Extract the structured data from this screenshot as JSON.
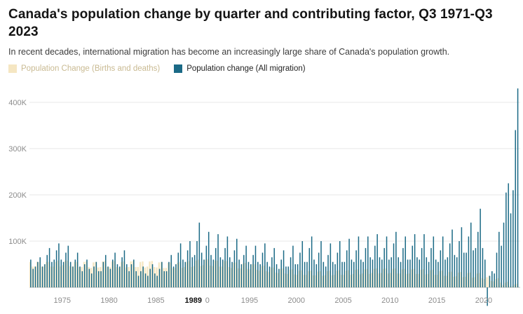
{
  "header": {
    "title": "Canada's population change by quarter and contributing factor, Q3 1971-Q3 2023",
    "subtitle": "In recent decades, international migration has become an increasingly large share of Canada's population growth."
  },
  "legend": [
    {
      "label": "Population Change (Births and deaths)",
      "color": "#f5e6c2"
    },
    {
      "label": "Population change (All migration)",
      "color": "#1b6a86"
    }
  ],
  "chart_data": {
    "type": "bar",
    "title": "Canada's population change by quarter and contributing factor, Q3 1971-Q3 2023",
    "units": "persons (values in thousands)",
    "x_range": {
      "start": "1971 Q3",
      "end": "2023 Q3",
      "frequency": "quarterly"
    },
    "ylim_thousands": [
      -60,
      440
    ],
    "grid": true,
    "legend_position": "top",
    "y_ticks": [
      {
        "label": "100K",
        "value": 100
      },
      {
        "label": "200K",
        "value": 200
      },
      {
        "label": "300K",
        "value": 300
      },
      {
        "label": "400K",
        "value": 400
      }
    ],
    "x_ticks": [
      {
        "label": "1975",
        "quarter_index": 14,
        "bold": false
      },
      {
        "label": "1980",
        "quarter_index": 34,
        "bold": false
      },
      {
        "label": "1985",
        "quarter_index": 54,
        "bold": false
      },
      {
        "label": "1989",
        "quarter_index": 70,
        "bold": true
      },
      {
        "label": "0",
        "quarter_index": 76,
        "bold": false
      },
      {
        "label": "1995",
        "quarter_index": 94,
        "bold": false
      },
      {
        "label": "2000",
        "quarter_index": 114,
        "bold": false
      },
      {
        "label": "2005",
        "quarter_index": 134,
        "bold": false
      },
      {
        "label": "2010",
        "quarter_index": 154,
        "bold": false
      },
      {
        "label": "2015",
        "quarter_index": 174,
        "bold": false
      },
      {
        "label": "2020",
        "quarter_index": 194,
        "bold": false
      }
    ],
    "series": [
      {
        "name": "Population Change (Births and deaths)",
        "color": "#f5e6c2",
        "values_thousands": [
          55,
          45,
          45,
          55,
          55,
          45,
          45,
          55,
          55,
          45,
          45,
          55,
          58,
          45,
          48,
          58,
          58,
          46,
          45,
          55,
          55,
          44,
          44,
          55,
          56,
          44,
          42,
          54,
          55,
          43,
          44,
          56,
          57,
          44,
          44,
          56,
          57,
          44,
          43,
          55,
          56,
          43,
          44,
          56,
          57,
          44,
          44,
          55,
          56,
          43,
          45,
          56,
          57,
          44,
          43,
          54,
          55,
          42,
          42,
          53,
          54,
          42,
          42,
          53,
          55,
          42,
          44,
          55,
          57,
          44,
          46,
          58,
          60,
          46,
          48,
          60,
          61,
          47,
          46,
          58,
          58,
          45,
          45,
          57,
          57,
          44,
          42,
          53,
          54,
          41,
          41,
          52,
          53,
          40,
          39,
          50,
          50,
          38,
          36,
          46,
          47,
          35,
          33,
          43,
          43,
          32,
          31,
          40,
          41,
          30,
          29,
          38,
          39,
          28,
          27,
          36,
          37,
          27,
          27,
          35,
          36,
          26,
          26,
          34,
          35,
          25,
          26,
          35,
          36,
          26,
          27,
          36,
          37,
          27,
          27,
          36,
          37,
          27,
          29,
          38,
          39,
          28,
          30,
          39,
          40,
          29,
          31,
          40,
          41,
          30,
          31,
          40,
          41,
          30,
          31,
          40,
          41,
          30,
          30,
          39,
          40,
          29,
          30,
          39,
          40,
          29,
          29,
          38,
          39,
          28,
          29,
          37,
          38,
          27,
          27,
          35,
          36,
          25,
          25,
          33,
          34,
          23,
          24,
          32,
          33,
          22,
          23,
          31,
          32,
          21,
          22,
          30,
          31,
          20,
          18,
          22,
          25,
          14,
          13,
          18,
          20,
          10,
          5,
          10,
          12,
          2,
          2,
          6,
          8
        ]
      },
      {
        "name": "Population change (All migration)",
        "color": "#1b6a86",
        "values_thousands": [
          60,
          40,
          45,
          55,
          65,
          45,
          50,
          70,
          85,
          55,
          60,
          80,
          95,
          60,
          55,
          75,
          90,
          55,
          45,
          60,
          75,
          45,
          35,
          50,
          60,
          40,
          30,
          45,
          55,
          35,
          35,
          55,
          70,
          45,
          40,
          60,
          75,
          50,
          45,
          65,
          80,
          50,
          35,
          50,
          60,
          35,
          25,
          35,
          45,
          30,
          25,
          40,
          50,
          30,
          25,
          40,
          55,
          35,
          35,
          55,
          70,
          45,
          50,
          75,
          95,
          60,
          55,
          80,
          100,
          65,
          70,
          100,
          140,
          75,
          60,
          90,
          120,
          70,
          60,
          85,
          115,
          65,
          60,
          85,
          110,
          65,
          55,
          80,
          105,
          60,
          50,
          70,
          90,
          55,
          50,
          70,
          90,
          55,
          50,
          75,
          95,
          55,
          45,
          65,
          85,
          50,
          40,
          60,
          80,
          45,
          45,
          65,
          90,
          50,
          50,
          75,
          100,
          55,
          55,
          85,
          110,
          60,
          50,
          75,
          100,
          55,
          45,
          70,
          95,
          55,
          50,
          75,
          100,
          55,
          55,
          80,
          105,
          60,
          55,
          80,
          110,
          60,
          55,
          85,
          110,
          65,
          60,
          90,
          115,
          65,
          60,
          85,
          110,
          60,
          65,
          95,
          120,
          65,
          55,
          85,
          110,
          60,
          60,
          90,
          115,
          65,
          60,
          85,
          115,
          65,
          55,
          85,
          110,
          60,
          55,
          80,
          110,
          60,
          65,
          95,
          125,
          70,
          65,
          100,
          130,
          75,
          75,
          110,
          140,
          80,
          85,
          120,
          170,
          85,
          60,
          -40,
          25,
          35,
          30,
          75,
          120,
          90,
          140,
          205,
          225,
          160,
          210,
          340,
          430
        ]
      }
    ]
  }
}
